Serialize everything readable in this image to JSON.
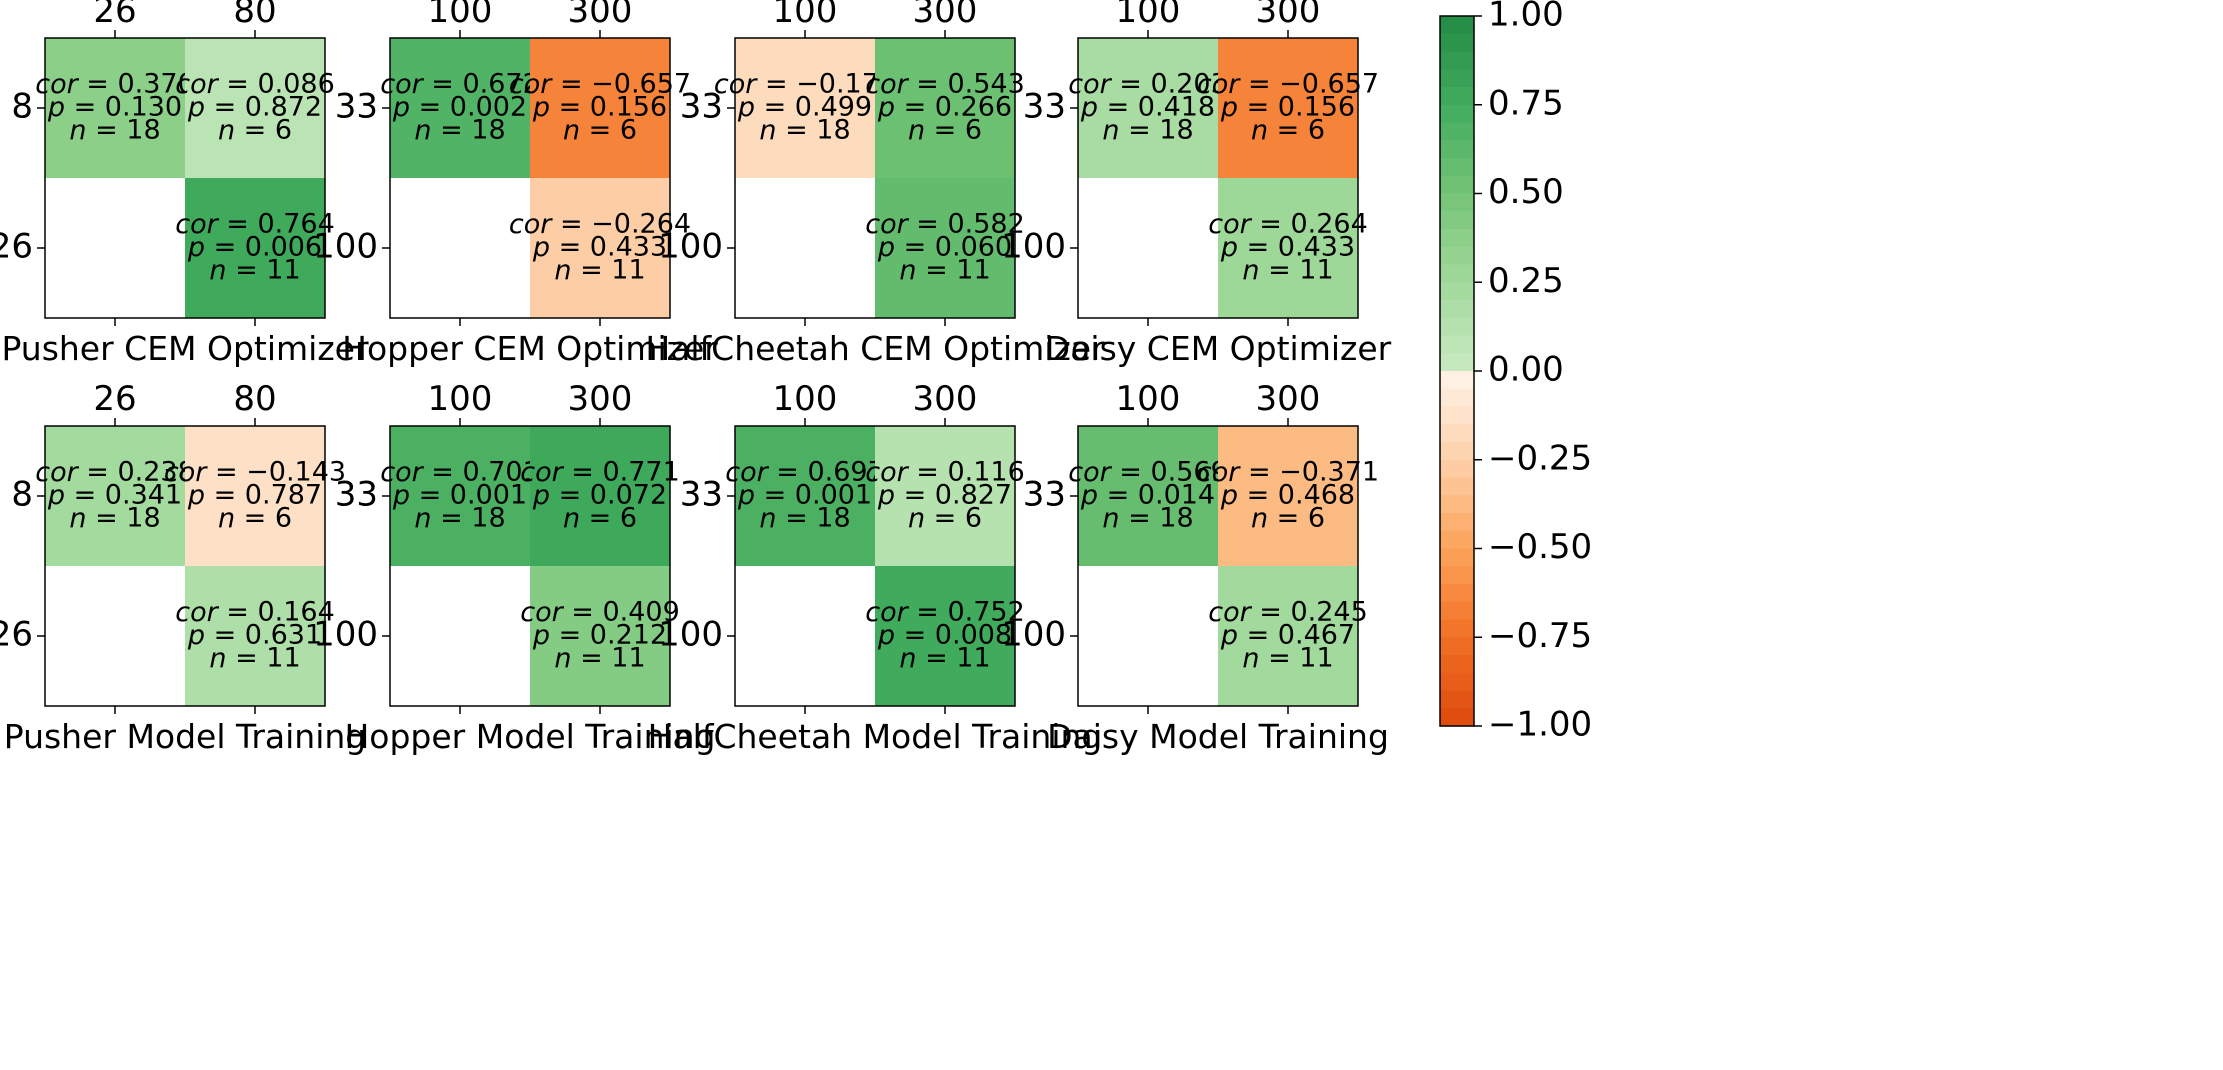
{
  "chart_data": {
    "type": "heatmap",
    "colorbar": {
      "range": [
        -1.0,
        1.0
      ],
      "ticks": [
        1.0,
        0.75,
        0.5,
        0.25,
        0.0,
        -0.25,
        -0.5,
        -0.75,
        -1.0
      ],
      "tick_labels": [
        "1.00",
        "0.75",
        "0.50",
        "0.25",
        "0.00",
        "−0.25",
        "−0.50",
        "−0.75",
        "−1.00"
      ]
    },
    "panels": [
      {
        "title": "Pusher CEM Optimizer",
        "x_ticks": [
          "26",
          "80"
        ],
        "y_ticks": [
          "8",
          "26"
        ],
        "cells": [
          {
            "row": 0,
            "col": 0,
            "cor": 0.37,
            "cor_label": "0.370",
            "p": "0.130",
            "n": "18"
          },
          {
            "row": 0,
            "col": 1,
            "cor": 0.086,
            "cor_label": "0.086",
            "p": "0.872",
            "n": "6"
          },
          {
            "row": 1,
            "col": 1,
            "cor": 0.764,
            "cor_label": "0.764",
            "p": "0.006",
            "n": "11"
          }
        ]
      },
      {
        "title": "Hopper CEM Optimizer",
        "x_ticks": [
          "100",
          "300"
        ],
        "y_ticks": [
          "33",
          "100"
        ],
        "cells": [
          {
            "row": 0,
            "col": 0,
            "cor": 0.672,
            "cor_label": "0.672",
            "p": "0.002",
            "n": "18"
          },
          {
            "row": 0,
            "col": 1,
            "cor": -0.657,
            "cor_label": "−0.657",
            "p": "0.156",
            "n": "6"
          },
          {
            "row": 1,
            "col": 1,
            "cor": -0.264,
            "cor_label": "−0.264",
            "p": "0.433",
            "n": "11"
          }
        ]
      },
      {
        "title": "HalfCheetah CEM Optimizer",
        "x_ticks": [
          "100",
          "300"
        ],
        "y_ticks": [
          "33",
          "100"
        ],
        "cells": [
          {
            "row": 0,
            "col": 0,
            "cor": -0.17,
            "cor_label": "−0.170",
            "p": "0.499",
            "n": "18"
          },
          {
            "row": 0,
            "col": 1,
            "cor": 0.543,
            "cor_label": "0.543",
            "p": "0.266",
            "n": "6"
          },
          {
            "row": 1,
            "col": 1,
            "cor": 0.582,
            "cor_label": "0.582",
            "p": "0.060",
            "n": "11"
          }
        ]
      },
      {
        "title": "Daisy CEM Optimizer",
        "x_ticks": [
          "100",
          "300"
        ],
        "y_ticks": [
          "33",
          "100"
        ],
        "cells": [
          {
            "row": 0,
            "col": 0,
            "cor": 0.203,
            "cor_label": "0.203",
            "p": "0.418",
            "n": "18"
          },
          {
            "row": 0,
            "col": 1,
            "cor": -0.657,
            "cor_label": "−0.657",
            "p": "0.156",
            "n": "6"
          },
          {
            "row": 1,
            "col": 1,
            "cor": 0.264,
            "cor_label": "0.264",
            "p": "0.433",
            "n": "11"
          }
        ]
      },
      {
        "title": "Pusher Model Training",
        "x_ticks": [
          "26",
          "80"
        ],
        "y_ticks": [
          "8",
          "26"
        ],
        "cells": [
          {
            "row": 0,
            "col": 0,
            "cor": 0.238,
            "cor_label": "0.238",
            "p": "0.341",
            "n": "18"
          },
          {
            "row": 0,
            "col": 1,
            "cor": -0.143,
            "cor_label": "−0.143",
            "p": "0.787",
            "n": "6"
          },
          {
            "row": 1,
            "col": 1,
            "cor": 0.164,
            "cor_label": "0.164",
            "p": "0.631",
            "n": "11"
          }
        ]
      },
      {
        "title": "Hopper Model Training",
        "x_ticks": [
          "100",
          "300"
        ],
        "y_ticks": [
          "33",
          "100"
        ],
        "cells": [
          {
            "row": 0,
            "col": 0,
            "cor": 0.701,
            "cor_label": "0.701",
            "p": "0.001",
            "n": "18"
          },
          {
            "row": 0,
            "col": 1,
            "cor": 0.771,
            "cor_label": "0.771",
            "p": "0.072",
            "n": "6"
          },
          {
            "row": 1,
            "col": 1,
            "cor": 0.409,
            "cor_label": "0.409",
            "p": "0.212",
            "n": "11"
          }
        ]
      },
      {
        "title": "HalfCheetah Model Training",
        "x_ticks": [
          "100",
          "300"
        ],
        "y_ticks": [
          "33",
          "100"
        ],
        "cells": [
          {
            "row": 0,
            "col": 0,
            "cor": 0.697,
            "cor_label": "0.697",
            "p": "0.001",
            "n": "18"
          },
          {
            "row": 0,
            "col": 1,
            "cor": 0.116,
            "cor_label": "0.116",
            "p": "0.827",
            "n": "6"
          },
          {
            "row": 1,
            "col": 1,
            "cor": 0.752,
            "cor_label": "0.752",
            "p": "0.008",
            "n": "11"
          }
        ]
      },
      {
        "title": "Daisy Model Training",
        "x_ticks": [
          "100",
          "300"
        ],
        "y_ticks": [
          "33",
          "100"
        ],
        "cells": [
          {
            "row": 0,
            "col": 0,
            "cor": 0.569,
            "cor_label": "0.569",
            "p": "0.014",
            "n": "18"
          },
          {
            "row": 0,
            "col": 1,
            "cor": -0.371,
            "cor_label": "−0.371",
            "p": "0.468",
            "n": "6"
          },
          {
            "row": 1,
            "col": 1,
            "cor": 0.245,
            "cor_label": "0.245",
            "p": "0.467",
            "n": "11"
          }
        ]
      }
    ]
  }
}
